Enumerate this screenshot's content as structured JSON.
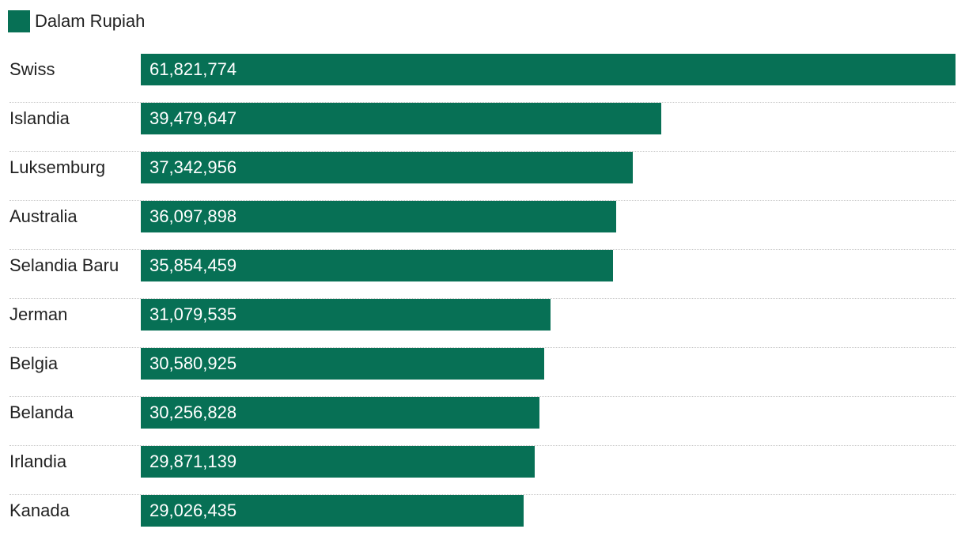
{
  "legend": {
    "label": "Dalam Rupiah",
    "color": "#077055"
  },
  "chart_data": {
    "type": "bar",
    "orientation": "horizontal",
    "categories": [
      "Swiss",
      "Islandia",
      "Luksemburg",
      "Australia",
      "Selandia Baru",
      "Jerman",
      "Belgia",
      "Belanda",
      "Irlandia",
      "Kanada"
    ],
    "series": [
      {
        "name": "Dalam Rupiah",
        "values": [
          61821774,
          39479647,
          37342956,
          36097898,
          35854459,
          31079535,
          30580925,
          30256828,
          29871139,
          29026435
        ],
        "labels": [
          "61,821,774",
          "39,479,647",
          "37,342,956",
          "36,097,898",
          "35,854,459",
          "31,079,535",
          "30,580,925",
          "30,256,828",
          "29,871,139",
          "29,026,435"
        ]
      }
    ],
    "xlim": [
      0,
      61821774
    ],
    "grid": false,
    "legend_position": "top-left",
    "bar_color": "#077055",
    "value_label_color": "#ffffff"
  }
}
